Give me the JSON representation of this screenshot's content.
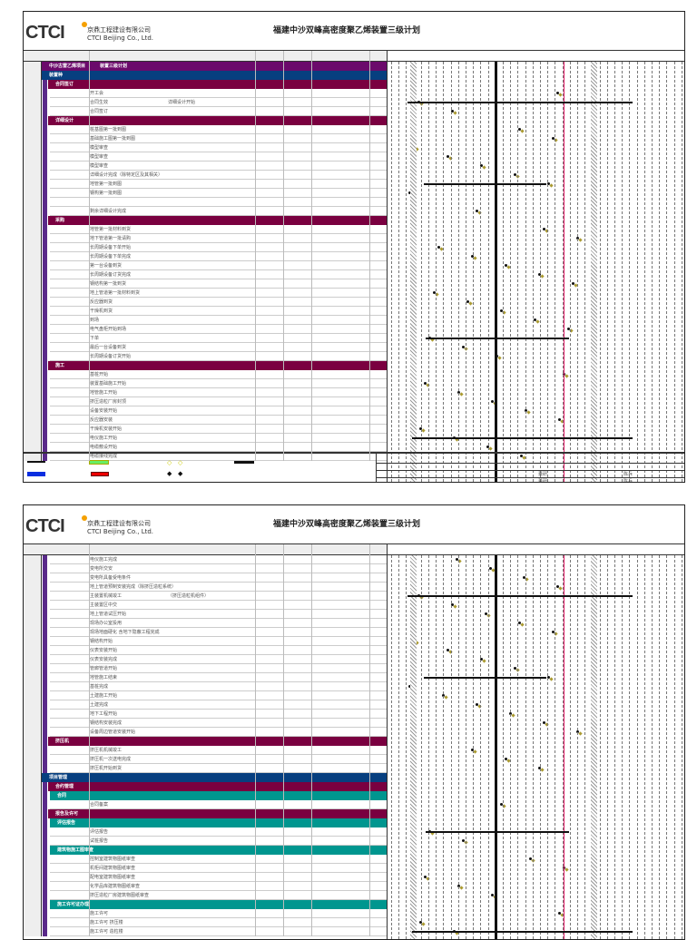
{
  "header": {
    "company_cn": "京鼎工程建设有限公司",
    "company_en": "CTCI Beijing Co., Ltd.",
    "logo": "CTCI",
    "title": "福建中沙双峰高密度聚乙烯装置三级计划"
  },
  "page1": {
    "rows": [
      {
        "t": "title",
        "a": "中沙古雷乙烯项目",
        "b": "装置三级计划"
      },
      {
        "t": "l1",
        "a": "装置种"
      },
      {
        "t": "l2",
        "a": "合同签订"
      },
      {
        "t": "task",
        "a": "开工会"
      },
      {
        "t": "task",
        "a": "合同生效",
        "b": "详细设计开始"
      },
      {
        "t": "task",
        "a": "合同签订"
      },
      {
        "t": "l2",
        "a": "详细设计"
      },
      {
        "t": "task",
        "a": "桩基图第一批到图"
      },
      {
        "t": "task",
        "a": "基础施工图第一批到图"
      },
      {
        "t": "task",
        "a": "模型审查"
      },
      {
        "t": "task",
        "a": "模型审查"
      },
      {
        "t": "task",
        "a": "模型审查"
      },
      {
        "t": "task",
        "a": "详细设计完成（除特定区及其相关）"
      },
      {
        "t": "task",
        "a": "地管第一批到图"
      },
      {
        "t": "task",
        "a": "钢构第一批到图"
      },
      {
        "t": "task",
        "a": ""
      },
      {
        "t": "task",
        "a": "剩余详细设计完成"
      },
      {
        "t": "l2",
        "a": "采购"
      },
      {
        "t": "task",
        "a": "地管第一批材料到货"
      },
      {
        "t": "task",
        "a": "地下管道第一批请购"
      },
      {
        "t": "task",
        "a": "长周期设备下单开始"
      },
      {
        "t": "task",
        "a": "长周期设备下单完成"
      },
      {
        "t": "task",
        "a": "第一台设备到货"
      },
      {
        "t": "task",
        "a": "长周期设备订货完成"
      },
      {
        "t": "task",
        "a": "钢结构第一批到货"
      },
      {
        "t": "task",
        "a": "地上管道第一批材料到货"
      },
      {
        "t": "task",
        "a": "反应器到货"
      },
      {
        "t": "task",
        "a": "干燥机到货"
      },
      {
        "t": "task",
        "a": "到场"
      },
      {
        "t": "task",
        "a": "电气盘柜开始到场"
      },
      {
        "t": "task",
        "a": "下单"
      },
      {
        "t": "task",
        "a": "最后一台设备到货"
      },
      {
        "t": "task",
        "a": "长周期设备订货开始"
      },
      {
        "t": "l2",
        "a": "施工"
      },
      {
        "t": "task",
        "a": "基桩开始"
      },
      {
        "t": "task",
        "a": "装置基础施工开始"
      },
      {
        "t": "task",
        "a": "地管施工开始"
      },
      {
        "t": "task",
        "a": "挤压造粒厂房封顶"
      },
      {
        "t": "task",
        "a": "设备安装开始"
      },
      {
        "t": "task",
        "a": "反应器安装"
      },
      {
        "t": "task",
        "a": "干燥机安装开始"
      },
      {
        "t": "task",
        "a": "电仪施工开始"
      },
      {
        "t": "task",
        "a": "电缆敷设开始"
      },
      {
        "t": "task",
        "a": "电缆接线完成"
      }
    ]
  },
  "page2": {
    "rows": [
      {
        "t": "task",
        "a": "电仪施工完成"
      },
      {
        "t": "task",
        "a": "变电所交安"
      },
      {
        "t": "task",
        "a": "变电所具备受电条件"
      },
      {
        "t": "task",
        "a": "地上管道预制安装完成（除挤压造粒系统）"
      },
      {
        "t": "task",
        "a": "主装置机械竣工",
        "b": "（挤压造粒机组件）"
      },
      {
        "t": "task",
        "a": "主装置区中交"
      },
      {
        "t": "task",
        "a": "地上管道试压开始"
      },
      {
        "t": "task",
        "a": "现场办公室投用"
      },
      {
        "t": "task",
        "a": "现场地面硬化 含地下隐蔽工程完成"
      },
      {
        "t": "task",
        "a": "钢结构开始"
      },
      {
        "t": "task",
        "a": "仪表安装开始"
      },
      {
        "t": "task",
        "a": "仪表安装完成"
      },
      {
        "t": "task",
        "a": "管廊管道开始"
      },
      {
        "t": "task",
        "a": "地管施工结束"
      },
      {
        "t": "task",
        "a": "基桩完成"
      },
      {
        "t": "task",
        "a": "土建施工开始"
      },
      {
        "t": "task",
        "a": "土建完成"
      },
      {
        "t": "task",
        "a": "地下工程开始"
      },
      {
        "t": "task",
        "a": "钢结构安装完成"
      },
      {
        "t": "task",
        "a": "设备周边管道安装开始"
      },
      {
        "t": "l2",
        "a": "挤压机"
      },
      {
        "t": "task",
        "a": "挤压机机械竣工"
      },
      {
        "t": "task",
        "a": "挤压机一次送电完成"
      },
      {
        "t": "task",
        "a": "挤压机开始到货"
      },
      {
        "t": "l1",
        "a": "项目管理"
      },
      {
        "t": "l2",
        "a": "合约管理"
      },
      {
        "t": "l3",
        "a": "合同"
      },
      {
        "t": "task",
        "a": "合同备案"
      },
      {
        "t": "l2",
        "a": "报告及许可"
      },
      {
        "t": "l3",
        "a": "评估报告"
      },
      {
        "t": "task",
        "a": "评估报告"
      },
      {
        "t": "task",
        "a": "试桩报告"
      },
      {
        "t": "l3",
        "a": "建筑物施工图审查"
      },
      {
        "t": "task",
        "a": "控制室建筑物图纸审查"
      },
      {
        "t": "task",
        "a": "机柜间建筑物图纸审查"
      },
      {
        "t": "task",
        "a": "配电室建筑物图纸审查"
      },
      {
        "t": "task",
        "a": "化学品库建筑物图纸审查"
      },
      {
        "t": "task",
        "a": "挤压造粒厂房建筑物图纸审查"
      },
      {
        "t": "l3",
        "a": "施工许可证办理"
      },
      {
        "t": "task",
        "a": "施工许可"
      },
      {
        "t": "task",
        "a": "施工许可 挤压楼"
      },
      {
        "t": "task",
        "a": "施工许可 造粒楼"
      }
    ]
  },
  "footer": {
    "r1a": "董研",
    "r1b": "陈兵",
    "r2a": "董研",
    "r2b": "陈兵"
  },
  "colors": {
    "title": "#6b0a6b",
    "level1": "#073f7f",
    "level2": "#7a0040",
    "level3": "#00968f",
    "today": "#e0206a"
  }
}
